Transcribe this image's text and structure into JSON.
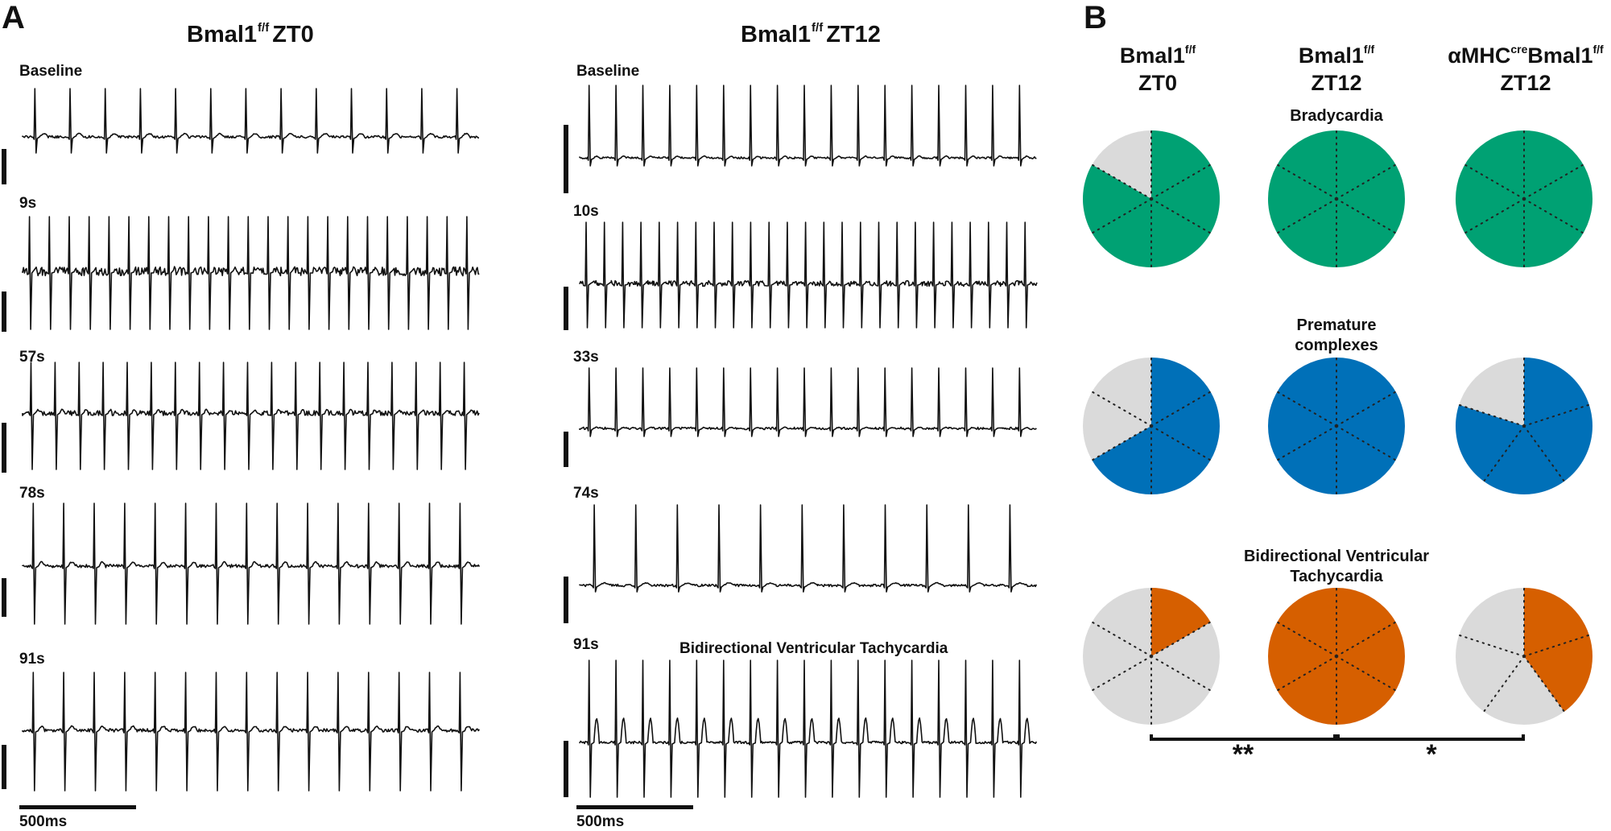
{
  "panels": {
    "A": {
      "letter": "A",
      "left": {
        "title": "Bmal1",
        "title_sup": "f/f",
        "title_suffix": "ZT0",
        "traces": [
          {
            "label": "Baseline",
            "beats": 13,
            "noise": 0.15,
            "amp": 1.0,
            "tpeak": 0.2,
            "neg": 1
          },
          {
            "label": "9s",
            "beats": 23,
            "noise": 0.55,
            "amp": 1.0,
            "tpeak": 0.25,
            "neg": 1
          },
          {
            "label": "57s",
            "beats": 19,
            "noise": 0.3,
            "amp": 1.0,
            "tpeak": 0.2,
            "neg": 1
          },
          {
            "label": "78s",
            "beats": 15,
            "noise": 0.2,
            "amp": 1.0,
            "tpeak": 0.3,
            "neg": 1
          },
          {
            "label": "91s",
            "beats": 15,
            "noise": 0.2,
            "amp": 1.0,
            "tpeak": 0.3,
            "neg": 1
          }
        ],
        "scale_label": "500ms"
      },
      "right": {
        "title": "Bmal1",
        "title_sup": "f/f",
        "title_suffix": "ZT12",
        "traces": [
          {
            "label": "Baseline",
            "beats": 17,
            "noise": 0.12,
            "amp": 1.0,
            "tpeak": 0.2,
            "neg": 0
          },
          {
            "label": "10s",
            "beats": 25,
            "noise": 0.35,
            "amp": 1.0,
            "tpeak": 0.15,
            "neg": 0
          },
          {
            "label": "33s",
            "beats": 17,
            "noise": 0.15,
            "amp": 1.0,
            "tpeak": 0.12,
            "neg": 0
          },
          {
            "label": "74s",
            "beats": 11,
            "noise": 0.15,
            "amp": 1.0,
            "tpeak": 0.3,
            "neg": 0
          },
          {
            "label": "91s",
            "beats": 17,
            "noise": 0.15,
            "amp": 1.0,
            "tpeak": 0.8,
            "neg": 1
          }
        ],
        "annotation": "Bidirectional Ventricular Tachycardia",
        "scale_label": "500ms"
      }
    },
    "B": {
      "letter": "B",
      "groups": [
        {
          "name": "Bmal1",
          "sup": "f/f",
          "line2": "ZT0"
        },
        {
          "name": "Bmal1",
          "sup": "f/f",
          "line2": "ZT12"
        },
        {
          "name_prefix": "αMHC",
          "prefix_sup": "cre",
          "name": "Bmal1",
          "sup": "f/f",
          "line2": "ZT12"
        }
      ],
      "rows": [
        {
          "title_lines": [
            "Bradycardia"
          ],
          "color": "#00a173",
          "fractions": [
            0.8333,
            1.0,
            1.0
          ],
          "dividers": 6
        },
        {
          "title_lines": [
            "Premature",
            "complexes"
          ],
          "color": "#0070b8",
          "fractions": [
            0.6667,
            1.0,
            0.8
          ],
          "dividers": 6
        },
        {
          "title_lines": [
            "Bidirectional Ventricular",
            "Tachycardia"
          ],
          "color": "#d65f00",
          "fractions": [
            0.1667,
            1.0,
            0.4
          ],
          "dividers": 6
        }
      ],
      "unaffected_color": "#dadada",
      "significance": [
        {
          "between": "ZT0 vs ZT12",
          "label": "**"
        },
        {
          "between": "ZT12 vs αMHCcre ZT12",
          "label": "*"
        }
      ]
    }
  }
}
